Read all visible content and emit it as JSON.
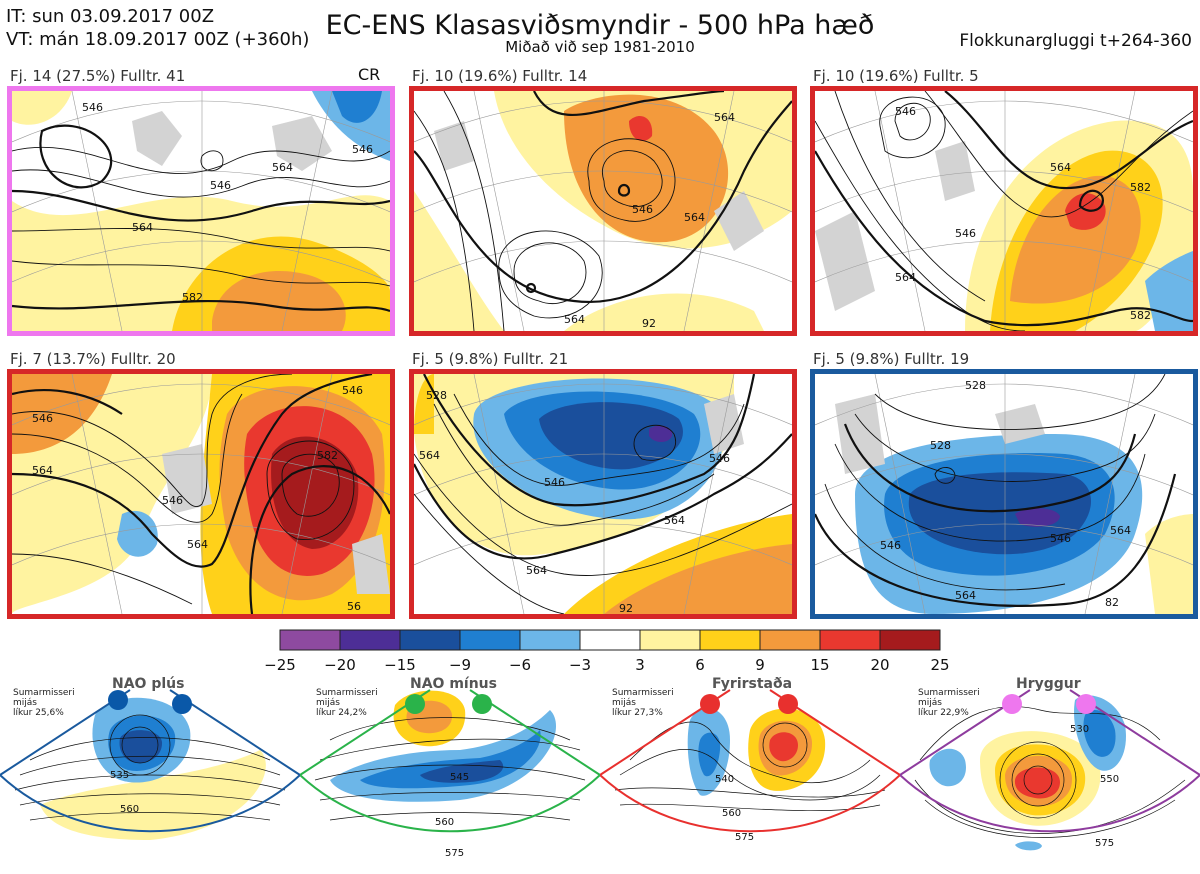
{
  "header": {
    "it": "IT: sun 03.09.2017 00Z",
    "vt": "VT: mán 18.09.2017 00Z  (+360h)",
    "title": "EC-ENS Klasasviðsmyndir - 500 hPa hæð",
    "subtitle": "Miðað við sep 1981-2010",
    "window": "Flokkunargluggi t+264-360"
  },
  "panels": [
    {
      "label": "Fj. 14 (27.5%)   Fulltr. 41",
      "tag": "CR",
      "border": "#ee77ee",
      "regime": "ridge"
    },
    {
      "label": "Fj. 10 (19.6%)   Fulltr. 14",
      "tag": "",
      "border": "#e8302e",
      "regime": "block"
    },
    {
      "label": "Fj. 10 (19.6%)   Fulltr. 5",
      "tag": "",
      "border": "#e8302e",
      "regime": "block"
    },
    {
      "label": "Fj. 7 (13.7%)   Fulltr. 20",
      "tag": "",
      "border": "#e8302e",
      "regime": "block"
    },
    {
      "label": "Fj. 5 (9.8%)   Fulltr. 21",
      "tag": "",
      "border": "#e8302e",
      "regime": "block"
    },
    {
      "label": "Fj. 5 (9.8%)   Fulltr. 19",
      "tag": "",
      "border": "#1a5a9e",
      "regime": "nao+"
    }
  ],
  "contour_labels": {
    "p0": [
      "546",
      "546",
      "564",
      "564",
      "582",
      "546"
    ],
    "p1": [
      "546",
      "564",
      "564",
      "564",
      "92"
    ],
    "p2": [
      "546",
      "546",
      "564",
      "564",
      "582",
      "582"
    ],
    "p3": [
      "546",
      "546",
      "564",
      "546",
      "582",
      "564",
      "56"
    ],
    "p4": [
      "528",
      "546",
      "564",
      "564",
      "546",
      "564",
      "92"
    ],
    "p5": [
      "528",
      "528",
      "546",
      "546",
      "564",
      "564",
      "82"
    ]
  },
  "colorbar": {
    "ticks": [
      "−25",
      "−20",
      "−15",
      "−9",
      "−6",
      "−3",
      "3",
      "6",
      "9",
      "15",
      "20",
      "25"
    ],
    "colors": [
      "#8e4aa0",
      "#4d2e96",
      "#1a4f9c",
      "#1f7fd1",
      "#6cb6e8",
      "#ffffff",
      "#fff3a0",
      "#ffd11a",
      "#f39a3c",
      "#e9382f",
      "#a51b1d"
    ]
  },
  "regimes": [
    {
      "title": "NAO plús",
      "text": [
        "Sumarmisseri",
        "mijás",
        "líkur 25,6%"
      ],
      "dot": "#0a58a8",
      "border": "#1a5a9e",
      "labels": [
        "535",
        "560"
      ]
    },
    {
      "title": "NAO mínus",
      "text": [
        "Sumarmisseri",
        "mijás",
        "líkur 24,2%"
      ],
      "dot": "#2ab34a",
      "border": "#2ab34a",
      "labels": [
        "545",
        "560",
        "575"
      ]
    },
    {
      "title": "Fyrirstaða",
      "text": [
        "Sumarmisseri",
        "mijás",
        "líkur 27,3%"
      ],
      "dot": "#e8302e",
      "border": "#e8302e",
      "labels": [
        "540",
        "560",
        "575"
      ]
    },
    {
      "title": "Hryggur",
      "text": [
        "Sumarmisseri",
        "mijás",
        "líkur 22,9%"
      ],
      "dot": "#ee77ee",
      "border": "#8e3c9e",
      "labels": [
        "530",
        "550",
        "575"
      ]
    }
  ]
}
